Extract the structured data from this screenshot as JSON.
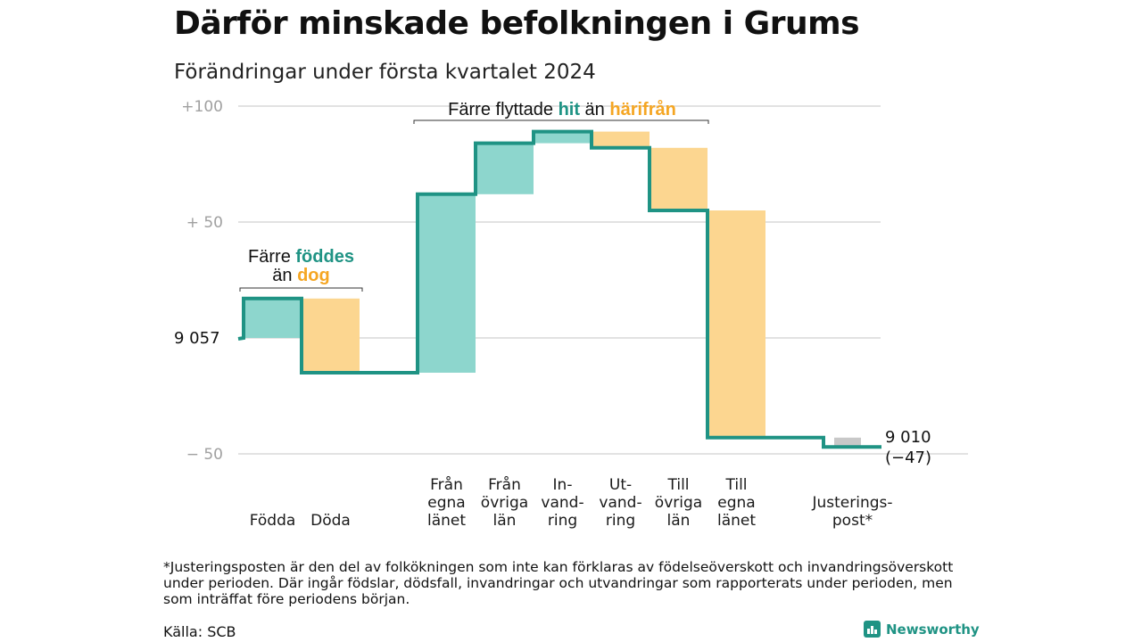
{
  "header": {
    "title": "Därför minskade befolkningen i Grums",
    "subtitle": "Förändringar under första kvartalet 2024"
  },
  "colors": {
    "increase": "#8dd6cd",
    "decrease": "#fcd690",
    "adjustment": "#c8c8c8",
    "line": "#1f9384",
    "teal_text": "#1f9384",
    "orange_text": "#f5a623",
    "grid": "#e2e2e2",
    "tick_text": "#a0a0a0"
  },
  "chart_data": {
    "type": "bar",
    "subtype": "waterfall",
    "start": {
      "label": "9  057",
      "value": 9057
    },
    "end": {
      "label": "9 010",
      "change_label": "(−47)",
      "value": 9010
    },
    "y_ticks": [
      {
        "label": "+100",
        "value": 100
      },
      {
        "label": "+  50",
        "value": 50
      },
      {
        "label": "−  50",
        "value": -50
      }
    ],
    "ylim": [
      -50,
      100
    ],
    "grid": true,
    "steps": [
      {
        "id": "fodda",
        "label": [
          "Födda"
        ],
        "delta": 17,
        "kind": "increase"
      },
      {
        "id": "doda",
        "label": [
          "Döda"
        ],
        "delta": -32,
        "kind": "decrease"
      },
      {
        "id": "gap",
        "label": [],
        "delta": 0,
        "kind": "none"
      },
      {
        "id": "fran-egna",
        "label": [
          "Från",
          "egna",
          "länet"
        ],
        "delta": 77,
        "kind": "increase"
      },
      {
        "id": "fran-ovriga",
        "label": [
          "Från",
          "övriga",
          "län"
        ],
        "delta": 22,
        "kind": "increase"
      },
      {
        "id": "invandring",
        "label": [
          "In-",
          "vand-",
          "ring"
        ],
        "delta": 5,
        "kind": "increase"
      },
      {
        "id": "utvandring",
        "label": [
          "Ut-",
          "vand-",
          "ring"
        ],
        "delta": -7,
        "kind": "decrease"
      },
      {
        "id": "till-ovriga",
        "label": [
          "Till",
          "övriga",
          "län"
        ],
        "delta": -27,
        "kind": "decrease"
      },
      {
        "id": "till-egna",
        "label": [
          "Till",
          "egna",
          "länet"
        ],
        "delta": -98,
        "kind": "decrease"
      },
      {
        "id": "gap2",
        "label": [],
        "delta": 0,
        "kind": "none"
      },
      {
        "id": "justering",
        "label": [
          "Justerings-",
          "post*"
        ],
        "delta": -4,
        "kind": "adjustment"
      }
    ],
    "annotations": [
      {
        "id": "birth-anno",
        "line1_pre": "Färre ",
        "line1_hl": "föddes",
        "line2_pre": "än ",
        "line2_hl": "dog",
        "span": [
          "fodda",
          "doda"
        ]
      },
      {
        "id": "move-anno",
        "pre": "Färre flyttade ",
        "hl1": "hit",
        "mid": " än ",
        "hl2": "härifrån",
        "span": [
          "fran-egna",
          "till-ovriga"
        ]
      }
    ]
  },
  "footer": {
    "footnote": "*Justeringsposten är den del av folkökningen som inte kan förklaras av födelseöverskott och invandringsöverskott under perioden. Där ingår födslar, dödsfall, invandringar och utvandringar som rapporterats under perioden, men som inträffat före periodens början.",
    "source": "Källa: SCB",
    "brand": "Newsworthy"
  }
}
